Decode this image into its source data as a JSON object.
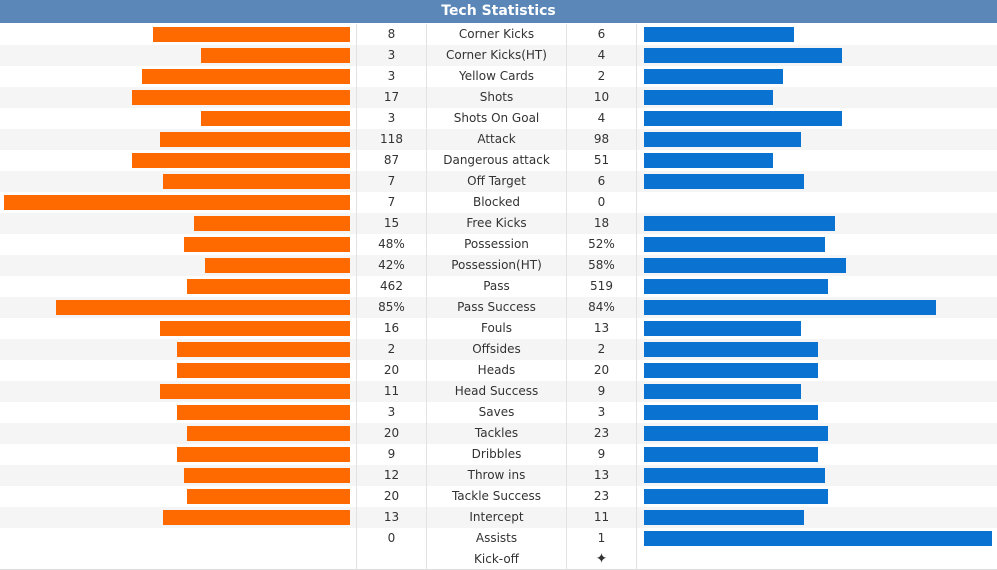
{
  "header": {
    "title": "Tech Statistics"
  },
  "colors": {
    "home": "#ff6a00",
    "away": "#0a73d1",
    "header": "#5b87b8"
  },
  "chart_data": {
    "type": "bar",
    "title": "Tech Statistics",
    "rows": [
      {
        "label": "Corner Kicks",
        "home": "8",
        "away": "6",
        "home_bar": 0.57,
        "away_bar": 0.43
      },
      {
        "label": "Corner Kicks(HT)",
        "home": "3",
        "away": "4",
        "home_bar": 0.43,
        "away_bar": 0.57
      },
      {
        "label": "Yellow Cards",
        "home": "3",
        "away": "2",
        "home_bar": 0.6,
        "away_bar": 0.4
      },
      {
        "label": "Shots",
        "home": "17",
        "away": "10",
        "home_bar": 0.63,
        "away_bar": 0.37
      },
      {
        "label": "Shots On Goal",
        "home": "3",
        "away": "4",
        "home_bar": 0.43,
        "away_bar": 0.57
      },
      {
        "label": "Attack",
        "home": "118",
        "away": "98",
        "home_bar": 0.55,
        "away_bar": 0.45
      },
      {
        "label": "Dangerous attack",
        "home": "87",
        "away": "51",
        "home_bar": 0.63,
        "away_bar": 0.37
      },
      {
        "label": "Off Target",
        "home": "7",
        "away": "6",
        "home_bar": 0.54,
        "away_bar": 0.46
      },
      {
        "label": "Blocked",
        "home": "7",
        "away": "0",
        "home_bar": 1.0,
        "away_bar": 0.0
      },
      {
        "label": "Free Kicks",
        "home": "15",
        "away": "18",
        "home_bar": 0.45,
        "away_bar": 0.55
      },
      {
        "label": "Possession",
        "home": "48%",
        "away": "52%",
        "home_bar": 0.48,
        "away_bar": 0.52
      },
      {
        "label": "Possession(HT)",
        "home": "42%",
        "away": "58%",
        "home_bar": 0.42,
        "away_bar": 0.58
      },
      {
        "label": "Pass",
        "home": "462",
        "away": "519",
        "home_bar": 0.47,
        "away_bar": 0.53
      },
      {
        "label": "Pass Success",
        "home": "85%",
        "away": "84%",
        "home_bar": 0.85,
        "away_bar": 0.84
      },
      {
        "label": "Fouls",
        "home": "16",
        "away": "13",
        "home_bar": 0.55,
        "away_bar": 0.45
      },
      {
        "label": "Offsides",
        "home": "2",
        "away": "2",
        "home_bar": 0.5,
        "away_bar": 0.5
      },
      {
        "label": "Heads",
        "home": "20",
        "away": "20",
        "home_bar": 0.5,
        "away_bar": 0.5
      },
      {
        "label": "Head Success",
        "home": "11",
        "away": "9",
        "home_bar": 0.55,
        "away_bar": 0.45
      },
      {
        "label": "Saves",
        "home": "3",
        "away": "3",
        "home_bar": 0.5,
        "away_bar": 0.5
      },
      {
        "label": "Tackles",
        "home": "20",
        "away": "23",
        "home_bar": 0.47,
        "away_bar": 0.53
      },
      {
        "label": "Dribbles",
        "home": "9",
        "away": "9",
        "home_bar": 0.5,
        "away_bar": 0.5
      },
      {
        "label": "Throw ins",
        "home": "12",
        "away": "13",
        "home_bar": 0.48,
        "away_bar": 0.52
      },
      {
        "label": "Tackle Success",
        "home": "20",
        "away": "23",
        "home_bar": 0.47,
        "away_bar": 0.53
      },
      {
        "label": "Intercept",
        "home": "13",
        "away": "11",
        "home_bar": 0.54,
        "away_bar": 0.46
      },
      {
        "label": "Assists",
        "home": "0",
        "away": "1",
        "home_bar": 0.0,
        "away_bar": 1.0
      }
    ]
  },
  "kickoff": {
    "label": "Kick-off",
    "icon": "kickoff-ball-icon",
    "glyph": "✦"
  }
}
